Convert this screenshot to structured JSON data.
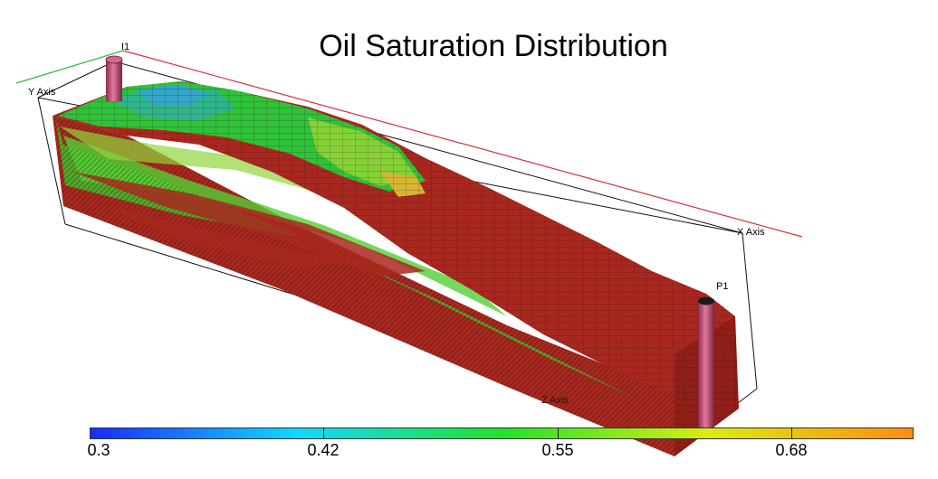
{
  "title": "Oil Saturation Distribution",
  "axes": {
    "y_label": "Y Axis",
    "x_label": "X Axis",
    "z_label": "Z Axis"
  },
  "wells": {
    "injector": "I1",
    "producer": "P1"
  },
  "colorbar": {
    "ticks": [
      "0.3",
      "0.42",
      "0.55",
      "0.68"
    ],
    "colors": [
      "#1a2bff",
      "#12d8ff",
      "#22e22a",
      "#d9ec12",
      "#ff8c12"
    ]
  },
  "colors": {
    "model_red": "#a8281f",
    "grid_line": "#2b0d0a",
    "x_axis_red": "#d0323c",
    "y_axis_green": "#2db836",
    "well_pink": "#c65377"
  }
}
